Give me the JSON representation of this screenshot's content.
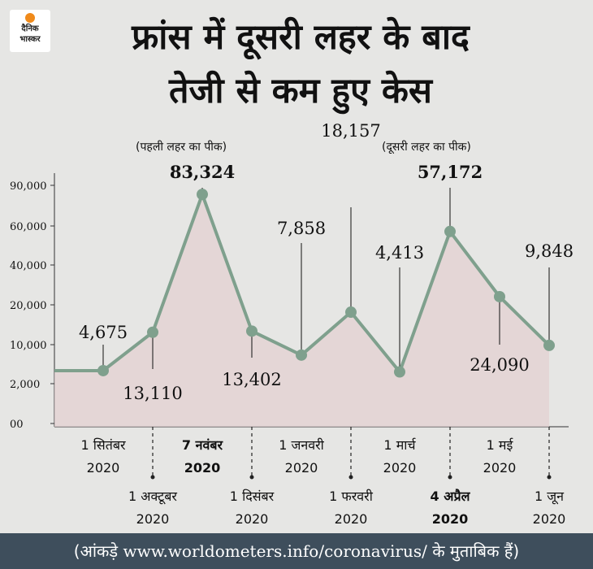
{
  "brand": {
    "line1": "दैनिक",
    "line2": "भास्कर",
    "accent": "#f08a1a"
  },
  "title_line1": "फ्रांस में दूसरी लहर के बाद",
  "title_line2": "तेजी से कम हुए केस",
  "footer": {
    "open": "(आंकड़े ",
    "url": "www.worldometers.info/coronavirus/",
    "close": " के मुताबिक हैं)"
  },
  "colors": {
    "line": "#7fa08d",
    "fill": "#e3d0d2",
    "footer_bg": "#3e4e5c"
  },
  "chart_data": {
    "type": "line",
    "title": "फ्रांस में दूसरी लहर के बाद तेजी से कम हुए केस",
    "y_ticks": [
      "90,000",
      "60,000",
      "40,000",
      "20,000",
      "10,000",
      "2,000",
      "00"
    ],
    "y_tick_values": [
      90000,
      60000,
      40000,
      20000,
      10000,
      2000,
      0
    ],
    "y_scale": "non-linear (ticks unevenly spaced)",
    "grid": false,
    "points": [
      {
        "date": "1 सितंबर 2020",
        "value": 4675,
        "label": "4,675"
      },
      {
        "date": "1 अक्टूबर 2020",
        "value": 13110,
        "label": "13,110"
      },
      {
        "date": "7 नवंबर 2020",
        "value": 83324,
        "label": "83,324",
        "bold": true,
        "tag": "(पहली लहर का पीक)"
      },
      {
        "date": "1 दिसंबर 2020",
        "value": 13402,
        "label": "13,402"
      },
      {
        "date": "1 जनवरी 2020",
        "value": 7858,
        "label": "7,858"
      },
      {
        "date": "1 फरवरी 2020",
        "value": 18157,
        "label": "18,157"
      },
      {
        "date": "1 मार्च 2020",
        "value": 4413,
        "label": "4,413"
      },
      {
        "date": "4 अप्रैल 2020",
        "value": 57172,
        "label": "57,172",
        "bold": true,
        "tag": "(दूसरी लहर का पीक)"
      },
      {
        "date": "1 मई 2020",
        "value": 24090,
        "label": "24,090"
      },
      {
        "date": "1 जून 2020",
        "value": 9848,
        "label": "9,848"
      }
    ]
  }
}
